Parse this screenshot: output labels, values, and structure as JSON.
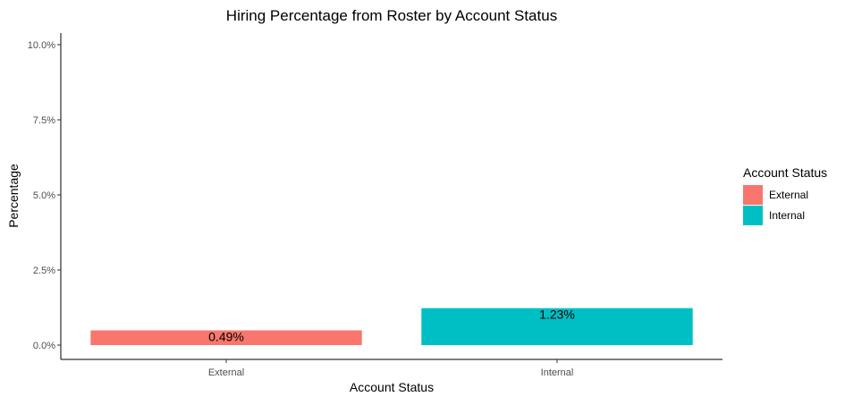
{
  "chart_data": {
    "type": "bar",
    "title": "Hiring Percentage from Roster by Account Status",
    "xlabel": "Account Status",
    "ylabel": "Percentage",
    "categories": [
      "External",
      "Internal"
    ],
    "values": [
      0.49,
      1.23
    ],
    "data_labels": [
      "0.49%",
      "1.23%"
    ],
    "colors": [
      "#F8766D",
      "#00BFC4"
    ],
    "ylim": [
      0,
      10
    ],
    "yticks": [
      0,
      2.5,
      5,
      7.5,
      10
    ],
    "ytick_labels": [
      "0.0%",
      "2.5%",
      "5.0%",
      "7.5%",
      "10.0%"
    ],
    "grid": false,
    "legend": {
      "title": "Account Status",
      "position": "right",
      "items": [
        {
          "label": "External",
          "color": "#F8766D"
        },
        {
          "label": "Internal",
          "color": "#00BFC4"
        }
      ]
    }
  }
}
